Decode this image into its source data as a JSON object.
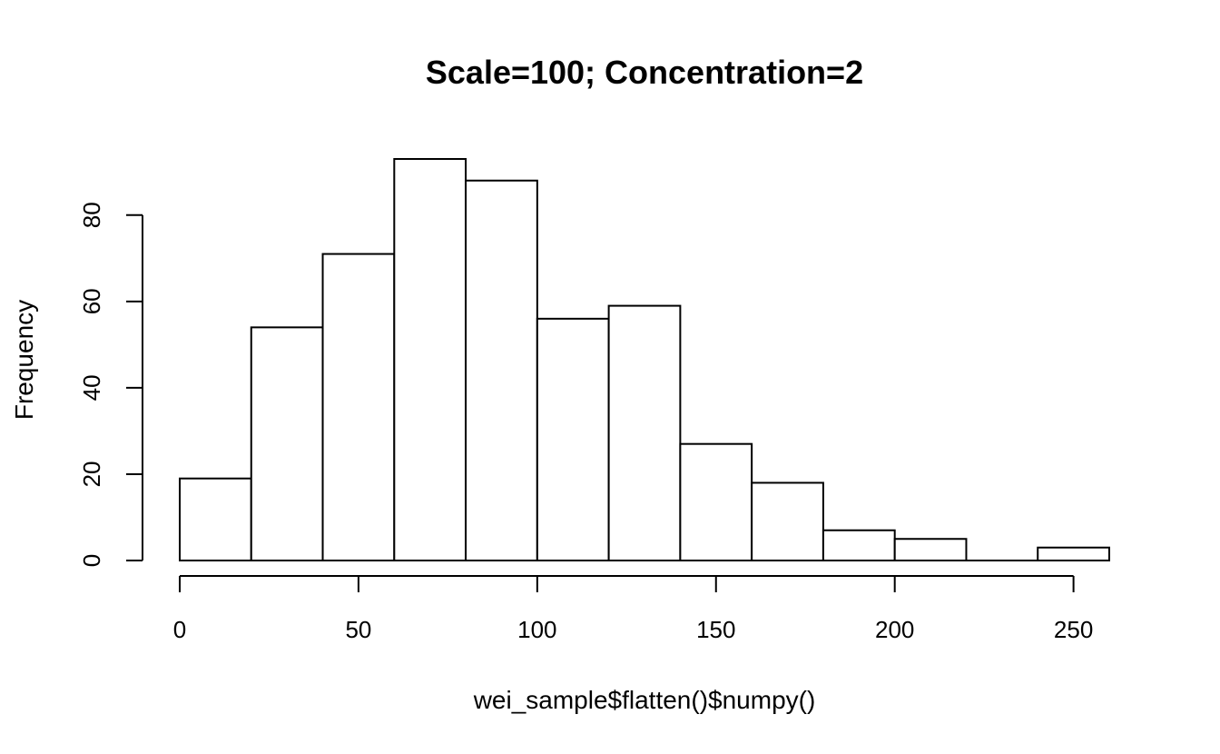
{
  "chart_data": {
    "type": "bar",
    "title": "Scale=100; Concentration=2",
    "xlabel": "wei_sample$flatten()$numpy()",
    "ylabel": "Frequency",
    "bins": [
      {
        "start": 0,
        "end": 20,
        "count": 19
      },
      {
        "start": 20,
        "end": 40,
        "count": 54
      },
      {
        "start": 40,
        "end": 60,
        "count": 71
      },
      {
        "start": 60,
        "end": 80,
        "count": 93
      },
      {
        "start": 80,
        "end": 100,
        "count": 88
      },
      {
        "start": 100,
        "end": 120,
        "count": 56
      },
      {
        "start": 120,
        "end": 140,
        "count": 59
      },
      {
        "start": 140,
        "end": 160,
        "count": 27
      },
      {
        "start": 160,
        "end": 180,
        "count": 18
      },
      {
        "start": 180,
        "end": 200,
        "count": 7
      },
      {
        "start": 200,
        "end": 220,
        "count": 5
      },
      {
        "start": 220,
        "end": 240,
        "count": 0
      },
      {
        "start": 240,
        "end": 260,
        "count": 3
      }
    ],
    "xticks": [
      "0",
      "50",
      "100",
      "150",
      "200",
      "250"
    ],
    "yticks": [
      "0",
      "20",
      "40",
      "60",
      "80"
    ],
    "xlim": [
      0,
      260
    ],
    "ylim": [
      0,
      93
    ],
    "grid": false,
    "legend": "none"
  }
}
